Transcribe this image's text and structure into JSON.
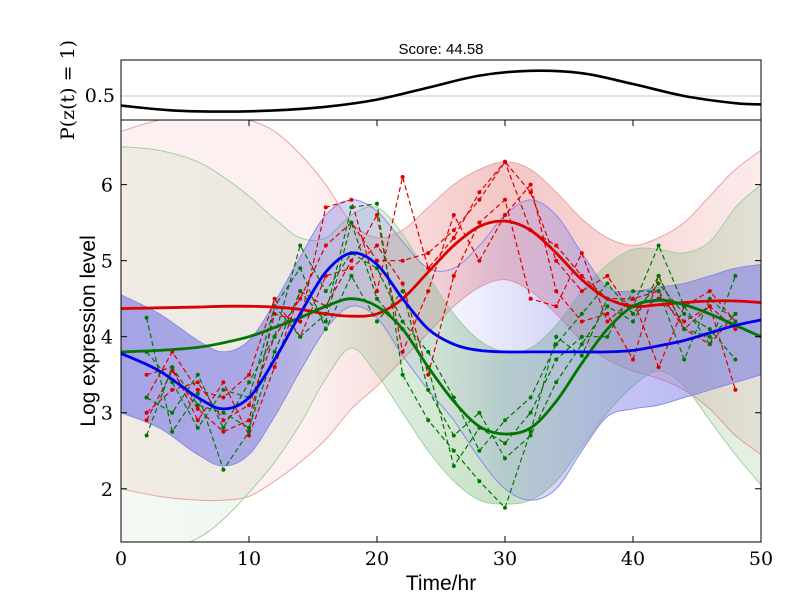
{
  "chart_data": [
    {
      "type": "line",
      "title": "Score: 44.58",
      "ylabel": "P(z(t) = 1)",
      "yticks": [
        0.5
      ],
      "xlim": [
        0,
        50
      ],
      "ylim": [
        0.3,
        0.8
      ],
      "grid": false,
      "series": [
        {
          "color": "#000000",
          "x": [
            0,
            4,
            8,
            12,
            16,
            20,
            24,
            28,
            32,
            36,
            40,
            44,
            48,
            50
          ],
          "y": [
            0.42,
            0.38,
            0.37,
            0.38,
            0.41,
            0.47,
            0.57,
            0.67,
            0.71,
            0.69,
            0.6,
            0.5,
            0.44,
            0.43
          ]
        }
      ]
    },
    {
      "type": "line",
      "xlabel": "Time/hr",
      "ylabel": "Log expression level",
      "xlim": [
        0,
        50
      ],
      "ylim": [
        1.3,
        6.85
      ],
      "xticks": [
        0,
        10,
        20,
        30,
        40,
        50
      ],
      "yticks": [
        2,
        3,
        4,
        5,
        6
      ],
      "grid": false,
      "series": [
        {
          "color": "#0000ee",
          "x": [
            0,
            3,
            6,
            8,
            10,
            12,
            14,
            16,
            18,
            20,
            22,
            24,
            26,
            28,
            30,
            32,
            34,
            36,
            38,
            40,
            42,
            44,
            46,
            48,
            50
          ],
          "y": [
            3.78,
            3.55,
            3.2,
            3.05,
            3.2,
            3.7,
            4.3,
            4.85,
            5.1,
            4.95,
            4.5,
            4.1,
            3.9,
            3.82,
            3.8,
            3.8,
            3.8,
            3.8,
            3.8,
            3.82,
            3.88,
            3.95,
            4.05,
            4.15,
            4.22
          ],
          "band_upper": [
            4.55,
            4.3,
            3.95,
            3.8,
            3.95,
            4.45,
            5.05,
            5.6,
            5.8,
            5.65,
            5.25,
            4.9,
            4.9,
            5.2,
            5.6,
            5.8,
            5.6,
            5.1,
            4.65,
            4.6,
            4.65,
            4.7,
            4.8,
            4.9,
            4.95
          ],
          "band_lower": [
            3.0,
            2.8,
            2.45,
            2.3,
            2.45,
            2.95,
            3.55,
            4.1,
            4.4,
            4.25,
            3.75,
            3.3,
            2.9,
            2.4,
            2.0,
            1.85,
            2.0,
            2.5,
            2.95,
            3.05,
            3.1,
            3.2,
            3.3,
            3.4,
            3.5
          ]
        },
        {
          "color": "#dd0000",
          "x": [
            0,
            3,
            6,
            8,
            10,
            12,
            14,
            16,
            18,
            20,
            22,
            24,
            26,
            28,
            30,
            32,
            34,
            36,
            38,
            40,
            42,
            44,
            46,
            48,
            50
          ],
          "y": [
            4.37,
            4.38,
            4.39,
            4.4,
            4.4,
            4.39,
            4.36,
            4.3,
            4.27,
            4.3,
            4.5,
            4.85,
            5.2,
            5.45,
            5.52,
            5.4,
            5.1,
            4.75,
            4.5,
            4.4,
            4.42,
            4.45,
            4.47,
            4.47,
            4.45
          ],
          "band_upper": [
            6.7,
            6.85,
            6.9,
            6.9,
            6.85,
            6.7,
            6.4,
            6.0,
            5.5,
            5.3,
            5.4,
            5.7,
            6.0,
            6.2,
            6.3,
            6.2,
            5.9,
            5.55,
            5.3,
            5.2,
            5.3,
            5.5,
            5.85,
            6.2,
            6.45
          ],
          "band_lower": [
            2.0,
            1.9,
            1.85,
            1.85,
            1.9,
            2.1,
            2.35,
            2.65,
            3.05,
            3.35,
            3.7,
            4.05,
            4.4,
            4.65,
            4.75,
            4.6,
            4.3,
            3.95,
            3.7,
            3.55,
            3.45,
            3.3,
            3.05,
            2.7,
            2.45
          ]
        },
        {
          "color": "#007700",
          "x": [
            0,
            3,
            6,
            8,
            10,
            12,
            14,
            16,
            18,
            20,
            22,
            24,
            26,
            28,
            30,
            32,
            34,
            36,
            38,
            40,
            42,
            44,
            46,
            48,
            50
          ],
          "y": [
            3.8,
            3.82,
            3.86,
            3.92,
            4.0,
            4.12,
            4.25,
            4.4,
            4.5,
            4.4,
            4.1,
            3.6,
            3.15,
            2.82,
            2.72,
            2.8,
            3.15,
            3.65,
            4.1,
            4.4,
            4.48,
            4.42,
            4.3,
            4.15,
            4.0
          ],
          "band_upper": [
            6.5,
            6.45,
            6.3,
            6.1,
            5.85,
            5.55,
            5.3,
            5.3,
            5.6,
            5.7,
            5.35,
            4.8,
            4.3,
            3.95,
            3.8,
            3.85,
            4.15,
            4.6,
            4.95,
            5.15,
            5.15,
            5.1,
            5.25,
            5.7,
            6.0
          ],
          "band_lower": [
            1.1,
            1.15,
            1.35,
            1.6,
            1.95,
            2.35,
            2.85,
            3.45,
            3.85,
            3.5,
            3.0,
            2.5,
            2.1,
            1.85,
            1.8,
            1.85,
            2.1,
            2.55,
            3.0,
            3.35,
            3.55,
            3.35,
            2.9,
            2.45,
            2.05
          ]
        }
      ],
      "replicates": [
        {
          "color": "#dd0000",
          "x": [
            2,
            4,
            6,
            8,
            10,
            12,
            14,
            16,
            18,
            20,
            22,
            24,
            26,
            28,
            30,
            32,
            34,
            36,
            38,
            40,
            42,
            44,
            46,
            48
          ],
          "y": [
            2.9,
            3.55,
            3.05,
            2.75,
            2.9,
            4.3,
            4.2,
            5.7,
            5.8,
            4.6,
            6.1,
            4.9,
            5.3,
            5.9,
            6.3,
            5.4,
            5.2,
            4.8,
            4.5,
            4.5,
            4.6,
            4.1,
            4.4,
            3.3
          ]
        },
        {
          "color": "#dd0000",
          "x": [
            2,
            4,
            6,
            8,
            10,
            12,
            14,
            16,
            18,
            20,
            22,
            24,
            26,
            28,
            30,
            32,
            34,
            36,
            38,
            40,
            42,
            44,
            46,
            48
          ],
          "y": [
            3.0,
            3.3,
            3.4,
            2.9,
            3.1,
            4.0,
            4.5,
            5.2,
            5.5,
            5.0,
            5.0,
            5.1,
            5.4,
            5.8,
            6.3,
            5.9,
            5.0,
            4.6,
            4.8,
            4.3,
            4.5,
            4.2,
            4.4,
            4.1
          ]
        },
        {
          "color": "#dd0000",
          "x": [
            2,
            4,
            6,
            8,
            10,
            12,
            14,
            16,
            18,
            20,
            22,
            24,
            26,
            28,
            30,
            32,
            34,
            36,
            38,
            40,
            42,
            44,
            46,
            48
          ],
          "y": [
            3.2,
            3.8,
            3.3,
            3.2,
            3.5,
            4.5,
            4.0,
            4.8,
            4.9,
            5.2,
            4.7,
            3.5,
            4.8,
            5.5,
            5.8,
            4.5,
            4.4,
            5.1,
            4.2,
            4.5,
            3.6,
            4.4,
            4.6,
            4.2
          ]
        },
        {
          "color": "#dd0000",
          "x": [
            2,
            4,
            6,
            8,
            10,
            12,
            14,
            16,
            18,
            20,
            22,
            24,
            26,
            28,
            30,
            32,
            34,
            36,
            38,
            40,
            42,
            44,
            46,
            48
          ],
          "y": [
            3.5,
            3.6,
            2.9,
            3.4,
            2.7,
            3.6,
            4.6,
            4.4,
            5.0,
            5.6,
            3.8,
            4.6,
            5.6,
            5.0,
            5.6,
            6.0,
            4.6,
            4.2,
            4.3,
            3.7,
            4.8,
            4.1,
            3.9,
            4.3
          ]
        },
        {
          "color": "#007700",
          "x": [
            2,
            4,
            6,
            8,
            10,
            12,
            14,
            16,
            18,
            20,
            22,
            24,
            26,
            28,
            30,
            32,
            34,
            36,
            38,
            40,
            42,
            44,
            46,
            48
          ],
          "y": [
            4.25,
            2.75,
            3.25,
            2.25,
            2.75,
            4.4,
            4.0,
            4.3,
            5.7,
            5.75,
            3.5,
            2.9,
            2.5,
            2.1,
            1.75,
            2.75,
            4.0,
            3.75,
            4.5,
            4.4,
            5.2,
            4.4,
            3.9,
            4.8
          ]
        },
        {
          "color": "#007700",
          "x": [
            2,
            4,
            6,
            8,
            10,
            12,
            14,
            16,
            18,
            20,
            22,
            24,
            26,
            28,
            30,
            32,
            34,
            36,
            38,
            40,
            42,
            44,
            46,
            48
          ],
          "y": [
            2.7,
            3.6,
            3.1,
            3.0,
            2.8,
            3.8,
            4.6,
            4.2,
            5.5,
            4.5,
            4.1,
            3.6,
            2.3,
            2.8,
            2.6,
            3.0,
            3.7,
            4.0,
            4.0,
            4.6,
            4.6,
            3.7,
            4.5,
            4.2
          ]
        },
        {
          "color": "#007700",
          "x": [
            2,
            4,
            6,
            8,
            10,
            12,
            14,
            16,
            18,
            20,
            22,
            24,
            26,
            28,
            30,
            32,
            34,
            36,
            38,
            40,
            42,
            44,
            46,
            48
          ],
          "y": [
            3.8,
            3.4,
            2.8,
            3.3,
            3.2,
            4.4,
            4.9,
            4.1,
            4.8,
            4.2,
            4.6,
            3.3,
            2.7,
            3.0,
            2.4,
            2.7,
            3.4,
            3.9,
            4.4,
            4.2,
            4.8,
            4.1,
            4.0,
            4.3
          ]
        },
        {
          "color": "#007700",
          "x": [
            2,
            4,
            6,
            8,
            10,
            12,
            14,
            16,
            18,
            20,
            22,
            24,
            26,
            28,
            30,
            32,
            34,
            36,
            38,
            40,
            42,
            44,
            46,
            48
          ],
          "y": [
            3.2,
            3.0,
            3.5,
            2.8,
            3.4,
            4.0,
            5.2,
            4.6,
            5.1,
            4.9,
            4.2,
            3.8,
            3.2,
            2.5,
            2.9,
            3.2,
            3.9,
            4.3,
            4.7,
            4.3,
            4.7,
            4.3,
            4.1,
            3.7
          ]
        }
      ]
    }
  ]
}
